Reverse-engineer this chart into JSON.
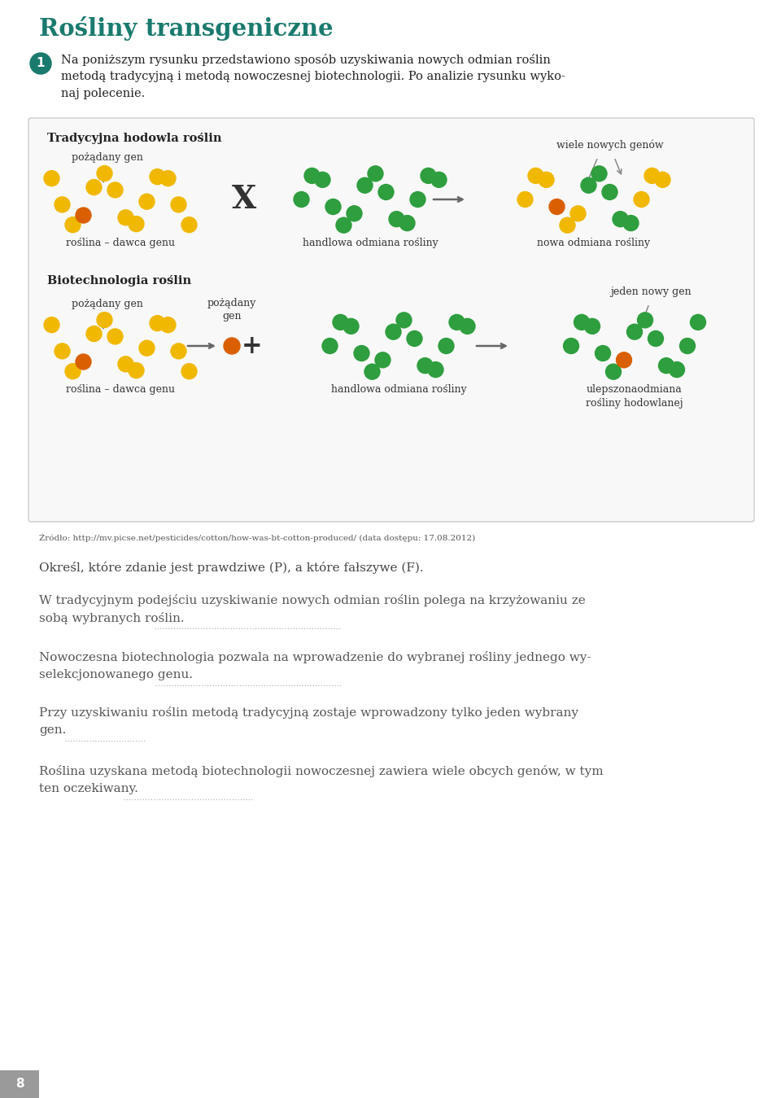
{
  "title": "Rośliny transgeniczne",
  "title_color": "#1a7a6e",
  "bg_color": "#ffffff",
  "intro_number_color": "#1a7a6e",
  "box_bg": "#f8f8f8",
  "box_border": "#cccccc",
  "section1_title": "Tradycyjna hodowla roślin",
  "section2_title": "Biotechnologia roślin",
  "yellow_color": "#f0b800",
  "green_color": "#2e9e3e",
  "orange_color": "#d95f00",
  "text_color": "#333333",
  "arrow_color": "#888888",
  "source_text": "Źródło: http://mv.picse.net/pesticides/cotton/how-was-bt-cotton-produced/ (data dostępu: 17.08.2012)",
  "q_text": "Określ, które zdanie jest prawdziwe (P), a które fałszywe (F).",
  "s1a": "W tradycyjnym podejściu uzyskiwanie nowych odmian roślin polega na krzyżowaniu ze",
  "s1b": "sobą wybranych roślin.",
  "s1_dots": 230,
  "s2a": "Nowoczesna biotechnologia pozwala na wprowadzenie do wybranej rośliny jednego wy-",
  "s2b": "selekcjonowanego genu.",
  "s2_dots": 230,
  "s3a": "Przy uzyskiwaniu roślin metodą tradycyjną zostaje wprowadzony tylko jeden wybrany",
  "s3b": "gen.",
  "s3_dots": 100,
  "s4a": "Roślina uzyskana metodą biotechnologii nowoczesnej zawiera wiele obcych genów, w tym",
  "s4b": "ten oczekiwany.",
  "s4_dots": 160,
  "page_number": "8"
}
